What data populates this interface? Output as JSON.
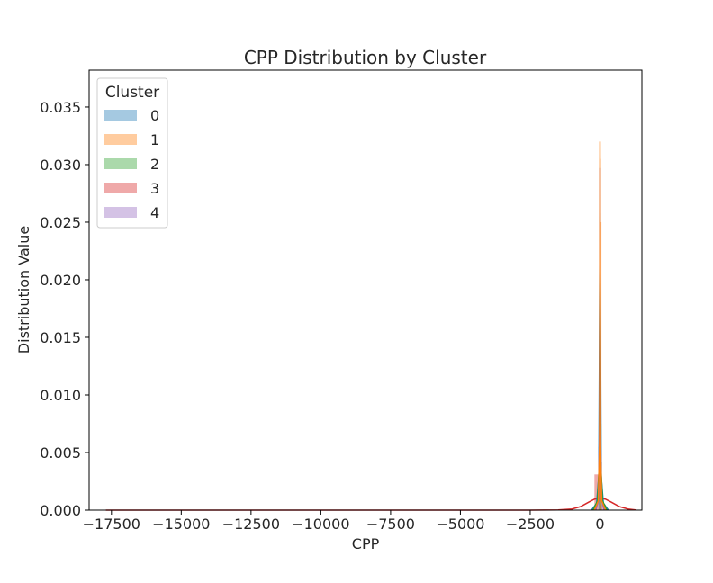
{
  "chart_data": {
    "type": "histogram",
    "title": "CPP Distribution by Cluster",
    "xlabel": "CPP",
    "ylabel": "Distribution Value",
    "xlim": [
      -18300,
      1500
    ],
    "ylim": [
      0,
      0.0382
    ],
    "x_ticks": [
      -17500,
      -15000,
      -12500,
      -10000,
      -7500,
      -5000,
      -2500,
      0
    ],
    "x_tick_labels": [
      "−17500",
      "−15000",
      "−12500",
      "−10000",
      "−7500",
      "−5000",
      "−2500",
      "0"
    ],
    "y_ticks": [
      0.0,
      0.005,
      0.01,
      0.015,
      0.02,
      0.025,
      0.03,
      0.035
    ],
    "y_tick_labels": [
      "0.000",
      "0.005",
      "0.010",
      "0.015",
      "0.020",
      "0.025",
      "0.030",
      "0.035"
    ],
    "grid": false,
    "legend": {
      "title": "Cluster",
      "position": "top-left"
    },
    "series": [
      {
        "name": "0",
        "color": "#1f77b4",
        "bars": [
          {
            "x0": -60,
            "x1": -20,
            "y": 0.0055
          },
          {
            "x0": -20,
            "x1": 20,
            "y": 0.0258
          },
          {
            "x0": 20,
            "x1": 60,
            "y": 0.0042
          }
        ],
        "kde": [
          [
            -300,
            0.0
          ],
          [
            -120,
            0.0006
          ],
          [
            -40,
            0.003
          ],
          [
            0,
            0.0255
          ],
          [
            40,
            0.003
          ],
          [
            120,
            0.0006
          ],
          [
            300,
            0.0
          ]
        ]
      },
      {
        "name": "1",
        "color": "#ff7f0e",
        "bars": [
          {
            "x0": -20,
            "x1": 0,
            "y": 0.0305
          },
          {
            "x0": 0,
            "x1": 20,
            "y": 0.025
          }
        ],
        "kde": [
          [
            -200,
            0.0
          ],
          [
            -60,
            0.0008
          ],
          [
            -15,
            0.006
          ],
          [
            0,
            0.032
          ],
          [
            15,
            0.006
          ],
          [
            60,
            0.0008
          ],
          [
            200,
            0.0
          ]
        ]
      },
      {
        "name": "2",
        "color": "#2ca02c",
        "bars": [
          {
            "x0": -30,
            "x1": 0,
            "y": 0.0095
          },
          {
            "x0": 0,
            "x1": 30,
            "y": 0.0075
          }
        ],
        "kde": [
          [
            -250,
            0.0
          ],
          [
            -90,
            0.0008
          ],
          [
            -25,
            0.004
          ],
          [
            0,
            0.0105
          ],
          [
            25,
            0.004
          ],
          [
            90,
            0.0008
          ],
          [
            250,
            0.0
          ]
        ]
      },
      {
        "name": "3",
        "color": "#d62728",
        "bars": [
          {
            "x0": -17600,
            "x1": -200,
            "y": 2e-05
          },
          {
            "x0": -200,
            "x1": 0,
            "y": 0.0031
          },
          {
            "x0": 0,
            "x1": 200,
            "y": 0.0005
          }
        ],
        "kde": [
          [
            -17700,
            0.0
          ],
          [
            -2500,
            0.0
          ],
          [
            -1500,
            2e-05
          ],
          [
            -1000,
            0.0001
          ],
          [
            -700,
            0.0003
          ],
          [
            -400,
            0.0007
          ],
          [
            -200,
            0.00095
          ],
          [
            0,
            0.00105
          ],
          [
            200,
            0.00095
          ],
          [
            400,
            0.0007
          ],
          [
            700,
            0.0003
          ],
          [
            1000,
            0.0001
          ],
          [
            1300,
            1e-05
          ]
        ]
      },
      {
        "name": "4",
        "color": "#9467bd",
        "bars": [
          {
            "x0": -20,
            "x1": 20,
            "y": 0.0297
          }
        ],
        "kde": [
          [
            -150,
            0.0
          ],
          [
            -50,
            0.0009
          ],
          [
            -12,
            0.008
          ],
          [
            0,
            0.0297
          ],
          [
            12,
            0.008
          ],
          [
            50,
            0.0009
          ],
          [
            150,
            0.0
          ]
        ]
      }
    ]
  }
}
